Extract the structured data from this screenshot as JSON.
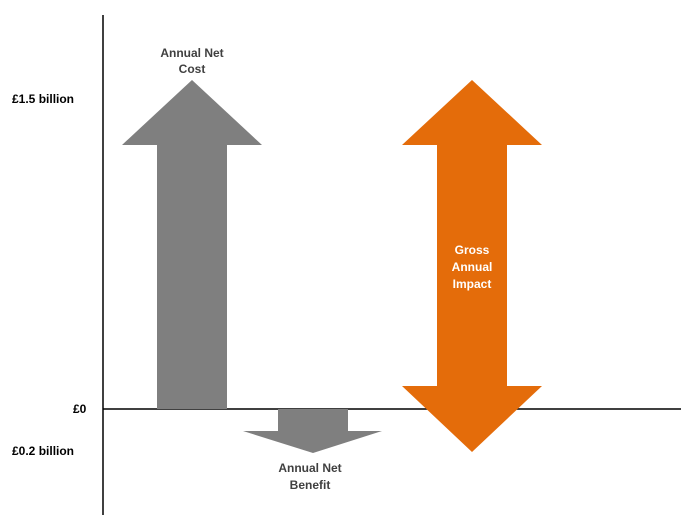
{
  "axis": {
    "labels": {
      "top": "£1.5 billion",
      "zero": "£0",
      "bottom": "£0.2 billion"
    }
  },
  "arrows": {
    "net_cost": {
      "label_line1": "Annual Net",
      "label_line2": "Cost",
      "color": "#7f7f7f",
      "label_color": "#404040"
    },
    "net_benefit": {
      "label_line1": "Annual Net",
      "label_line2": "Benefit",
      "color": "#7f7f7f",
      "label_color": "#404040"
    },
    "gross_impact": {
      "label_line1": "Gross",
      "label_line2": "Annual",
      "label_line3": "Impact",
      "color": "#e46c0a",
      "label_color": "#ffffff"
    }
  }
}
